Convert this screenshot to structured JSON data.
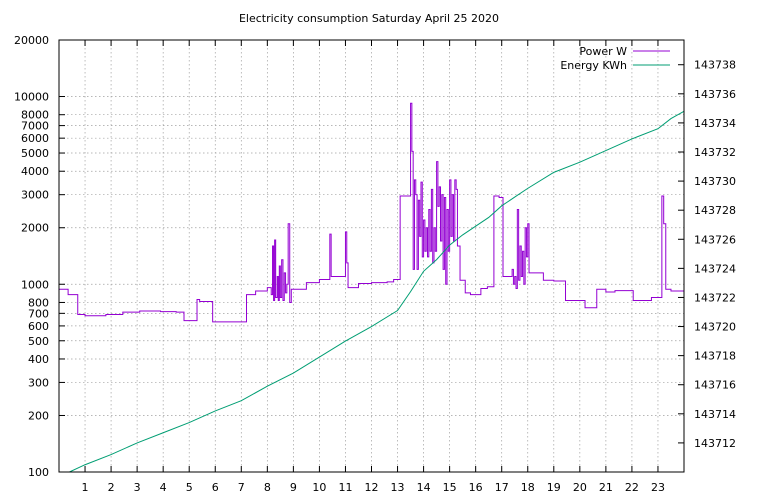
{
  "chart_data": {
    "type": "line",
    "title": "Electricity consumption Saturday April 25 2020",
    "xlabel": "",
    "ylabel": "",
    "y2label": "",
    "grid": true,
    "legend_position": "top-right",
    "x_range": [
      0,
      24
    ],
    "x_ticks": [
      1,
      2,
      3,
      4,
      5,
      6,
      7,
      8,
      9,
      10,
      11,
      12,
      13,
      14,
      15,
      16,
      17,
      18,
      19,
      20,
      21,
      22,
      23
    ],
    "y_scale": "log",
    "y_range": [
      100,
      20000
    ],
    "y_ticks": [
      100,
      200,
      300,
      400,
      500,
      600,
      700,
      800,
      1000,
      2000,
      3000,
      4000,
      5000,
      6000,
      7000,
      8000,
      10000,
      20000
    ],
    "y2_range": [
      143710,
      143739.7
    ],
    "y2_ticks": [
      143712,
      143714,
      143716,
      143718,
      143720,
      143722,
      143724,
      143726,
      143728,
      143730,
      143732,
      143734,
      143736,
      143738
    ],
    "colors": {
      "power": "#9400d3",
      "energy": "#009e73"
    },
    "series": [
      {
        "name": "Power W",
        "axis": "left",
        "color": "#9400d3",
        "step": true,
        "points": [
          [
            0.0,
            940
          ],
          [
            0.35,
            880
          ],
          [
            0.72,
            690
          ],
          [
            1.0,
            680
          ],
          [
            1.8,
            690
          ],
          [
            2.45,
            710
          ],
          [
            3.1,
            720
          ],
          [
            3.9,
            715
          ],
          [
            4.5,
            710
          ],
          [
            4.8,
            640
          ],
          [
            5.3,
            830
          ],
          [
            5.4,
            810
          ],
          [
            5.9,
            630
          ],
          [
            7.2,
            880
          ],
          [
            7.55,
            920
          ],
          [
            8.0,
            960
          ],
          [
            8.15,
            880
          ],
          [
            8.2,
            1600
          ],
          [
            8.24,
            820
          ],
          [
            8.28,
            1720
          ],
          [
            8.32,
            850
          ],
          [
            8.38,
            1100
          ],
          [
            8.42,
            820
          ],
          [
            8.46,
            1250
          ],
          [
            8.5,
            850
          ],
          [
            8.55,
            1350
          ],
          [
            8.6,
            820
          ],
          [
            8.65,
            1150
          ],
          [
            8.7,
            900
          ],
          [
            8.75,
            1000
          ],
          [
            8.8,
            2100
          ],
          [
            8.86,
            800
          ],
          [
            8.92,
            940
          ],
          [
            9.5,
            1020
          ],
          [
            10.0,
            1060
          ],
          [
            10.4,
            1850
          ],
          [
            10.45,
            1100
          ],
          [
            11.0,
            1900
          ],
          [
            11.05,
            1300
          ],
          [
            11.1,
            960
          ],
          [
            11.5,
            1010
          ],
          [
            12.0,
            1020
          ],
          [
            12.6,
            1030
          ],
          [
            12.85,
            1060
          ],
          [
            13.1,
            2950
          ],
          [
            13.5,
            9200
          ],
          [
            13.55,
            5100
          ],
          [
            13.6,
            1200
          ],
          [
            13.65,
            3600
          ],
          [
            13.7,
            3000
          ],
          [
            13.75,
            1200
          ],
          [
            13.8,
            2800
          ],
          [
            13.85,
            1800
          ],
          [
            13.9,
            3500
          ],
          [
            13.95,
            1400
          ],
          [
            14.0,
            2200
          ],
          [
            14.05,
            1500
          ],
          [
            14.1,
            2000
          ],
          [
            14.15,
            1400
          ],
          [
            14.2,
            2500
          ],
          [
            14.25,
            1500
          ],
          [
            14.3,
            3200
          ],
          [
            14.35,
            1300
          ],
          [
            14.4,
            2000
          ],
          [
            14.45,
            1500
          ],
          [
            14.5,
            4500
          ],
          [
            14.55,
            2600
          ],
          [
            14.6,
            3300
          ],
          [
            14.65,
            1700
          ],
          [
            14.7,
            3000
          ],
          [
            14.75,
            1200
          ],
          [
            14.8,
            2900
          ],
          [
            14.85,
            1000
          ],
          [
            14.9,
            2500
          ],
          [
            14.95,
            1500
          ],
          [
            15.0,
            3600
          ],
          [
            15.05,
            1800
          ],
          [
            15.1,
            3000
          ],
          [
            15.15,
            1700
          ],
          [
            15.2,
            3600
          ],
          [
            15.25,
            3200
          ],
          [
            15.3,
            1600
          ],
          [
            15.4,
            1050
          ],
          [
            15.6,
            900
          ],
          [
            15.8,
            880
          ],
          [
            16.2,
            950
          ],
          [
            16.45,
            970
          ],
          [
            16.7,
            2950
          ],
          [
            16.9,
            2900
          ],
          [
            17.05,
            1100
          ],
          [
            17.4,
            1200
          ],
          [
            17.45,
            1000
          ],
          [
            17.5,
            1100
          ],
          [
            17.55,
            950
          ],
          [
            17.6,
            2500
          ],
          [
            17.65,
            1050
          ],
          [
            17.7,
            1600
          ],
          [
            17.75,
            1100
          ],
          [
            17.8,
            1500
          ],
          [
            17.85,
            1000
          ],
          [
            17.9,
            2000
          ],
          [
            17.95,
            1400
          ],
          [
            18.0,
            2100
          ],
          [
            18.05,
            1150
          ],
          [
            18.6,
            1050
          ],
          [
            19.0,
            1040
          ],
          [
            19.45,
            820
          ],
          [
            20.2,
            750
          ],
          [
            20.65,
            940
          ],
          [
            21.0,
            910
          ],
          [
            21.35,
            925
          ],
          [
            22.05,
            820
          ],
          [
            22.75,
            850
          ],
          [
            23.15,
            2950
          ],
          [
            23.22,
            2100
          ],
          [
            23.3,
            940
          ],
          [
            23.5,
            920
          ],
          [
            24.0,
            920
          ]
        ]
      },
      {
        "name": "Energy KWh",
        "axis": "right",
        "color": "#009e73",
        "step": false,
        "points": [
          [
            0.4,
            143710.0
          ],
          [
            1.0,
            143710.5
          ],
          [
            2.0,
            143711.2
          ],
          [
            3.0,
            143712.0
          ],
          [
            4.0,
            143712.7
          ],
          [
            5.0,
            143713.4
          ],
          [
            6.0,
            143714.2
          ],
          [
            7.0,
            143714.9
          ],
          [
            8.0,
            143715.9
          ],
          [
            9.0,
            143716.8
          ],
          [
            10.0,
            143717.9
          ],
          [
            11.0,
            143719.0
          ],
          [
            12.0,
            143720.0
          ],
          [
            13.0,
            143721.1
          ],
          [
            13.5,
            143722.4
          ],
          [
            14.0,
            143723.8
          ],
          [
            14.5,
            143724.6
          ],
          [
            15.0,
            143725.6
          ],
          [
            15.5,
            143726.3
          ],
          [
            16.0,
            143726.9
          ],
          [
            16.5,
            143727.5
          ],
          [
            17.0,
            143728.3
          ],
          [
            17.5,
            143728.9
          ],
          [
            18.0,
            143729.5
          ],
          [
            19.0,
            143730.6
          ],
          [
            20.0,
            143731.3
          ],
          [
            21.0,
            143732.1
          ],
          [
            22.0,
            143732.9
          ],
          [
            23.0,
            143733.6
          ],
          [
            23.5,
            143734.3
          ],
          [
            24.0,
            143734.8
          ]
        ]
      }
    ]
  }
}
